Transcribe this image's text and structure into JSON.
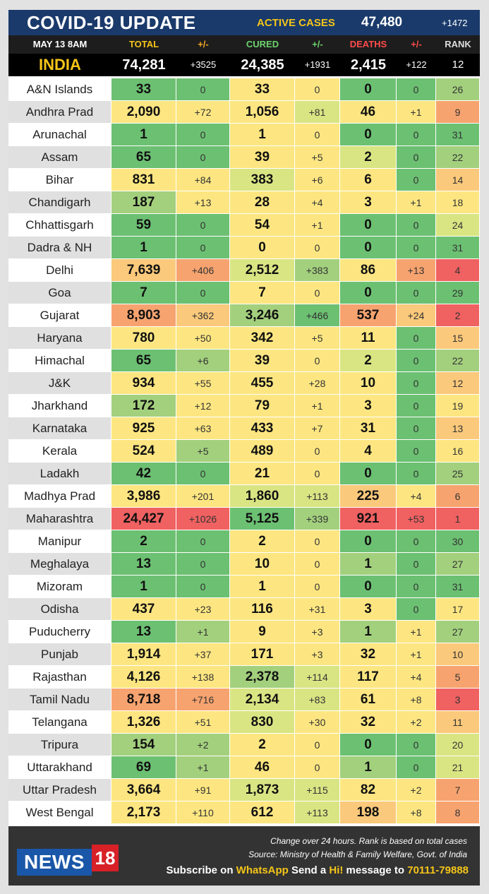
{
  "title": "COVID-19 UPDATE",
  "active_cases": {
    "label": "ACTIVE CASES",
    "value": "47,480",
    "change": "+1472"
  },
  "header": {
    "date": "MAY 13  8AM",
    "total": "TOTAL",
    "total_change": "+/-",
    "cured": "CURED",
    "cured_change": "+/-",
    "deaths": "DEATHS",
    "deaths_change": "+/-",
    "rank": "RANK"
  },
  "header_colors": {
    "date": "#ffffff",
    "total": "#f5c518",
    "total_change": "#f5a623",
    "cured": "#6fd36f",
    "cured_change": "#6fd36f",
    "deaths": "#ff4b4b",
    "deaths_change": "#ff4b4b",
    "rank": "#dddddd"
  },
  "india": {
    "name": "INDIA",
    "total": "74,281",
    "total_change": "+3525",
    "cured": "24,385",
    "cured_change": "+1931",
    "deaths": "2,415",
    "deaths_change": "+122",
    "rank": "12"
  },
  "india_color": "#f5c518",
  "palette": {
    "G": "#6cc072",
    "g": "#a3d07d",
    "l": "#d9e583",
    "Y": "#fde681",
    "o": "#fbc97b",
    "O": "#f7a36f",
    "R": "#f06161",
    "N1": "#ffffff",
    "N2": "#e0e0e0"
  },
  "states": [
    {
      "name": "A&N Islands",
      "total": "33",
      "tc": "0",
      "cured": "33",
      "cc": "0",
      "deaths": "0",
      "dc": "0",
      "rank": "26",
      "colors": [
        "G",
        "G",
        "Y",
        "Y",
        "G",
        "G",
        "g"
      ]
    },
    {
      "name": "Andhra Prad",
      "total": "2,090",
      "tc": "+72",
      "cured": "1,056",
      "cc": "+81",
      "deaths": "46",
      "dc": "+1",
      "rank": "9",
      "colors": [
        "Y",
        "Y",
        "Y",
        "l",
        "Y",
        "Y",
        "O"
      ]
    },
    {
      "name": "Arunachal",
      "total": "1",
      "tc": "0",
      "cured": "1",
      "cc": "0",
      "deaths": "0",
      "dc": "0",
      "rank": "31",
      "colors": [
        "G",
        "G",
        "Y",
        "Y",
        "G",
        "G",
        "G"
      ]
    },
    {
      "name": "Assam",
      "total": "65",
      "tc": "0",
      "cured": "39",
      "cc": "+5",
      "deaths": "2",
      "dc": "0",
      "rank": "22",
      "colors": [
        "G",
        "G",
        "Y",
        "Y",
        "l",
        "G",
        "g"
      ]
    },
    {
      "name": "Bihar",
      "total": "831",
      "tc": "+84",
      "cured": "383",
      "cc": "+6",
      "deaths": "6",
      "dc": "0",
      "rank": "14",
      "colors": [
        "Y",
        "Y",
        "l",
        "Y",
        "Y",
        "G",
        "o"
      ]
    },
    {
      "name": "Chandigarh",
      "total": "187",
      "tc": "+13",
      "cured": "28",
      "cc": "+4",
      "deaths": "3",
      "dc": "+1",
      "rank": "18",
      "colors": [
        "g",
        "Y",
        "Y",
        "Y",
        "Y",
        "Y",
        "Y"
      ]
    },
    {
      "name": "Chhattisgarh",
      "total": "59",
      "tc": "0",
      "cured": "54",
      "cc": "+1",
      "deaths": "0",
      "dc": "0",
      "rank": "24",
      "colors": [
        "G",
        "G",
        "Y",
        "Y",
        "G",
        "G",
        "l"
      ]
    },
    {
      "name": "Dadra & NH",
      "total": "1",
      "tc": "0",
      "cured": "0",
      "cc": "0",
      "deaths": "0",
      "dc": "0",
      "rank": "31",
      "colors": [
        "G",
        "G",
        "Y",
        "Y",
        "G",
        "G",
        "G"
      ]
    },
    {
      "name": "Delhi",
      "total": "7,639",
      "tc": "+406",
      "cured": "2,512",
      "cc": "+383",
      "deaths": "86",
      "dc": "+13",
      "rank": "4",
      "colors": [
        "o",
        "O",
        "l",
        "g",
        "Y",
        "O",
        "R"
      ]
    },
    {
      "name": "Goa",
      "total": "7",
      "tc": "0",
      "cured": "7",
      "cc": "0",
      "deaths": "0",
      "dc": "0",
      "rank": "29",
      "colors": [
        "G",
        "G",
        "Y",
        "Y",
        "G",
        "G",
        "G"
      ]
    },
    {
      "name": "Gujarat",
      "total": "8,903",
      "tc": "+362",
      "cured": "3,246",
      "cc": "+466",
      "deaths": "537",
      "dc": "+24",
      "rank": "2",
      "colors": [
        "O",
        "o",
        "g",
        "G",
        "O",
        "o",
        "R"
      ]
    },
    {
      "name": "Haryana",
      "total": "780",
      "tc": "+50",
      "cured": "342",
      "cc": "+5",
      "deaths": "11",
      "dc": "0",
      "rank": "15",
      "colors": [
        "Y",
        "Y",
        "Y",
        "Y",
        "Y",
        "G",
        "o"
      ]
    },
    {
      "name": "Himachal",
      "total": "65",
      "tc": "+6",
      "cured": "39",
      "cc": "0",
      "deaths": "2",
      "dc": "0",
      "rank": "22",
      "colors": [
        "G",
        "g",
        "Y",
        "Y",
        "l",
        "G",
        "g"
      ]
    },
    {
      "name": "J&K",
      "total": "934",
      "tc": "+55",
      "cured": "455",
      "cc": "+28",
      "deaths": "10",
      "dc": "0",
      "rank": "12",
      "colors": [
        "Y",
        "Y",
        "Y",
        "Y",
        "Y",
        "G",
        "o"
      ]
    },
    {
      "name": "Jharkhand",
      "total": "172",
      "tc": "+12",
      "cured": "79",
      "cc": "+1",
      "deaths": "3",
      "dc": "0",
      "rank": "19",
      "colors": [
        "g",
        "Y",
        "Y",
        "Y",
        "Y",
        "G",
        "Y"
      ]
    },
    {
      "name": "Karnataka",
      "total": "925",
      "tc": "+63",
      "cured": "433",
      "cc": "+7",
      "deaths": "31",
      "dc": "0",
      "rank": "13",
      "colors": [
        "Y",
        "Y",
        "Y",
        "Y",
        "Y",
        "G",
        "o"
      ]
    },
    {
      "name": "Kerala",
      "total": "524",
      "tc": "+5",
      "cured": "489",
      "cc": "0",
      "deaths": "4",
      "dc": "0",
      "rank": "16",
      "colors": [
        "Y",
        "g",
        "Y",
        "Y",
        "Y",
        "G",
        "Y"
      ]
    },
    {
      "name": "Ladakh",
      "total": "42",
      "tc": "0",
      "cured": "21",
      "cc": "0",
      "deaths": "0",
      "dc": "0",
      "rank": "25",
      "colors": [
        "G",
        "G",
        "Y",
        "Y",
        "G",
        "G",
        "g"
      ]
    },
    {
      "name": "Madhya Prad",
      "total": "3,986",
      "tc": "+201",
      "cured": "1,860",
      "cc": "+113",
      "deaths": "225",
      "dc": "+4",
      "rank": "6",
      "colors": [
        "Y",
        "Y",
        "l",
        "l",
        "o",
        "Y",
        "O"
      ]
    },
    {
      "name": "Maharashtra",
      "total": "24,427",
      "tc": "+1026",
      "cured": "5,125",
      "cc": "+339",
      "deaths": "921",
      "dc": "+53",
      "rank": "1",
      "colors": [
        "R",
        "R",
        "G",
        "g",
        "R",
        "R",
        "R"
      ]
    },
    {
      "name": "Manipur",
      "total": "2",
      "tc": "0",
      "cured": "2",
      "cc": "0",
      "deaths": "0",
      "dc": "0",
      "rank": "30",
      "colors": [
        "G",
        "G",
        "Y",
        "Y",
        "G",
        "G",
        "G"
      ]
    },
    {
      "name": "Meghalaya",
      "total": "13",
      "tc": "0",
      "cured": "10",
      "cc": "0",
      "deaths": "1",
      "dc": "0",
      "rank": "27",
      "colors": [
        "G",
        "G",
        "Y",
        "Y",
        "g",
        "G",
        "g"
      ]
    },
    {
      "name": "Mizoram",
      "total": "1",
      "tc": "0",
      "cured": "1",
      "cc": "0",
      "deaths": "0",
      "dc": "0",
      "rank": "31",
      "colors": [
        "G",
        "G",
        "Y",
        "Y",
        "G",
        "G",
        "G"
      ]
    },
    {
      "name": "Odisha",
      "total": "437",
      "tc": "+23",
      "cured": "116",
      "cc": "+31",
      "deaths": "3",
      "dc": "0",
      "rank": "17",
      "colors": [
        "Y",
        "Y",
        "Y",
        "Y",
        "Y",
        "G",
        "Y"
      ]
    },
    {
      "name": "Puducherry",
      "total": "13",
      "tc": "+1",
      "cured": "9",
      "cc": "+3",
      "deaths": "1",
      "dc": "+1",
      "rank": "27",
      "colors": [
        "G",
        "g",
        "Y",
        "Y",
        "g",
        "Y",
        "g"
      ]
    },
    {
      "name": "Punjab",
      "total": "1,914",
      "tc": "+37",
      "cured": "171",
      "cc": "+3",
      "deaths": "32",
      "dc": "+1",
      "rank": "10",
      "colors": [
        "Y",
        "Y",
        "Y",
        "Y",
        "Y",
        "Y",
        "o"
      ]
    },
    {
      "name": "Rajasthan",
      "total": "4,126",
      "tc": "+138",
      "cured": "2,378",
      "cc": "+114",
      "deaths": "117",
      "dc": "+4",
      "rank": "5",
      "colors": [
        "Y",
        "Y",
        "g",
        "l",
        "Y",
        "Y",
        "O"
      ]
    },
    {
      "name": "Tamil Nadu",
      "total": "8,718",
      "tc": "+716",
      "cured": "2,134",
      "cc": "+83",
      "deaths": "61",
      "dc": "+8",
      "rank": "3",
      "colors": [
        "O",
        "O",
        "l",
        "l",
        "Y",
        "Y",
        "R"
      ]
    },
    {
      "name": "Telangana",
      "total": "1,326",
      "tc": "+51",
      "cured": "830",
      "cc": "+30",
      "deaths": "32",
      "dc": "+2",
      "rank": "11",
      "colors": [
        "Y",
        "Y",
        "l",
        "Y",
        "Y",
        "Y",
        "o"
      ]
    },
    {
      "name": "Tripura",
      "total": "154",
      "tc": "+2",
      "cured": "2",
      "cc": "0",
      "deaths": "0",
      "dc": "0",
      "rank": "20",
      "colors": [
        "g",
        "g",
        "Y",
        "Y",
        "G",
        "G",
        "l"
      ]
    },
    {
      "name": "Uttarakhand",
      "total": "69",
      "tc": "+1",
      "cured": "46",
      "cc": "0",
      "deaths": "1",
      "dc": "0",
      "rank": "21",
      "colors": [
        "G",
        "g",
        "Y",
        "Y",
        "g",
        "G",
        "l"
      ]
    },
    {
      "name": "Uttar Pradesh",
      "total": "3,664",
      "tc": "+91",
      "cured": "1,873",
      "cc": "+115",
      "deaths": "82",
      "dc": "+2",
      "rank": "7",
      "colors": [
        "Y",
        "Y",
        "l",
        "l",
        "Y",
        "Y",
        "O"
      ]
    },
    {
      "name": "West Bengal",
      "total": "2,173",
      "tc": "+110",
      "cured": "612",
      "cc": "+113",
      "deaths": "198",
      "dc": "+8",
      "rank": "8",
      "colors": [
        "Y",
        "Y",
        "Y",
        "l",
        "o",
        "Y",
        "O"
      ]
    }
  ],
  "footer": {
    "logo_news": "NEWS",
    "logo_18": "18",
    "note1": "Change over 24 hours. Rank is based on total cases",
    "note2": "Source: Ministry of Health & Family Welfare, Govt. of India",
    "subscribe_prefix": "Subscribe on ",
    "whatsapp": "WhatsApp",
    "subscribe_middle": " Send a ",
    "hi": "Hi!",
    "subscribe_mid2": " message to ",
    "phone": "70111-79888"
  }
}
